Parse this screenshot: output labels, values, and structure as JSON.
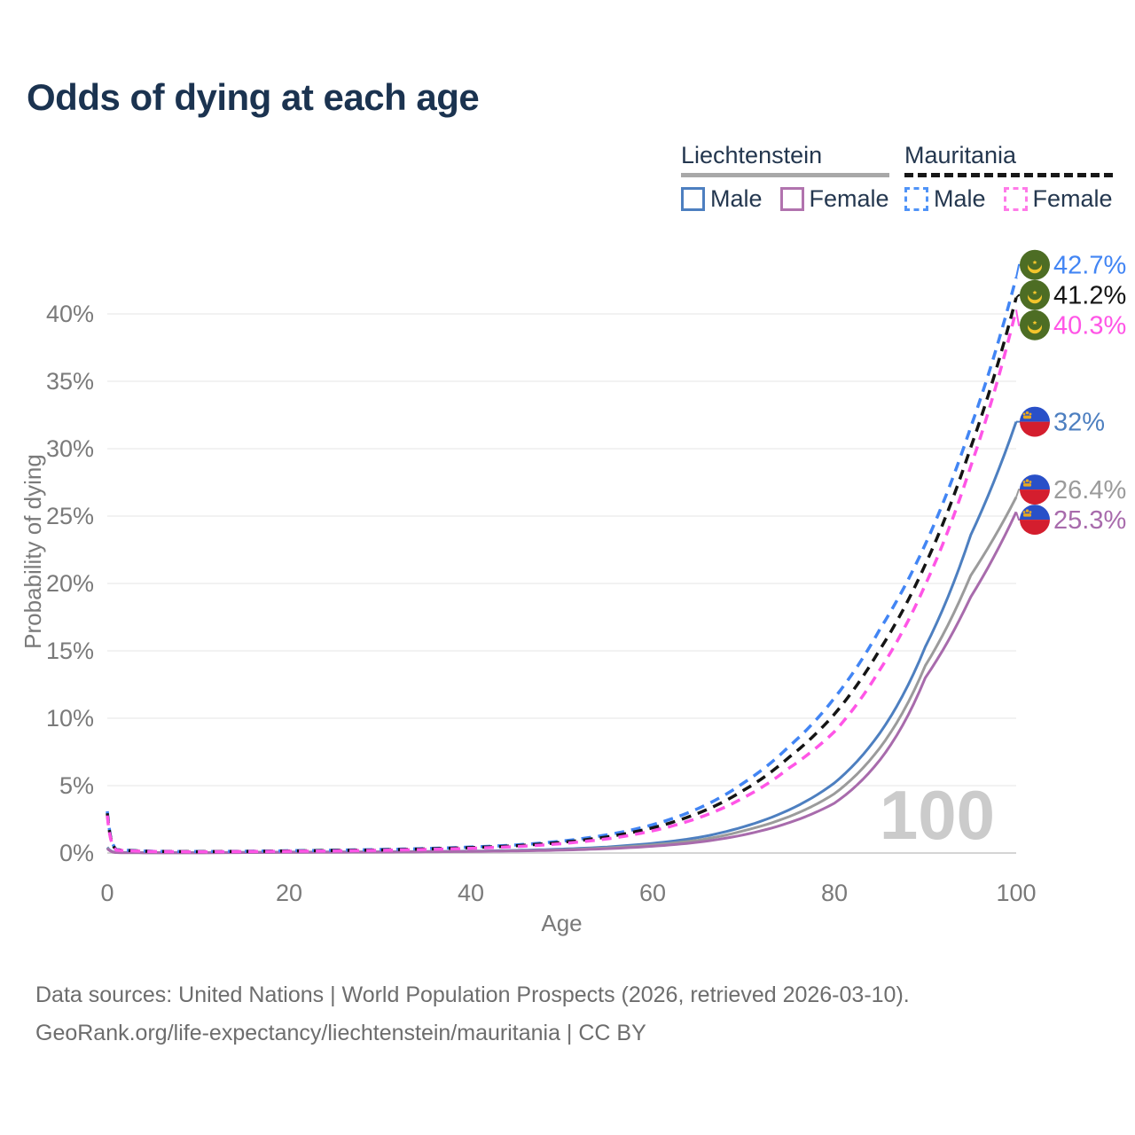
{
  "header": {
    "title": "Odds of dying at each age"
  },
  "legend": {
    "groups": [
      {
        "key": "liechtenstein",
        "title": "Liechtenstein",
        "line_style": "solid",
        "line_color": "#a8a8a8",
        "items": [
          {
            "key": "lie_male",
            "label": "Male",
            "swatch_color": "#4d7fc0",
            "swatch_style": "solid"
          },
          {
            "key": "lie_female",
            "label": "Female",
            "swatch_color": "#b173ae",
            "swatch_style": "solid"
          }
        ]
      },
      {
        "key": "mauritania",
        "title": "Mauritania",
        "line_style": "dashed",
        "line_color": "#171717",
        "items": [
          {
            "key": "mrt_male",
            "label": "Male",
            "swatch_color": "#4f93f7",
            "swatch_style": "dashed"
          },
          {
            "key": "mrt_female",
            "label": "Female",
            "swatch_color": "#ff7ae8",
            "swatch_style": "dashed"
          }
        ]
      }
    ]
  },
  "footer": {
    "line1": "Data sources: United Nations | World Population Prospects (2026, retrieved 2026-03-10).",
    "line2": "GeoRank.org/life-expectancy/liechtenstein/mauritania | CC BY"
  },
  "colors": {
    "title": "#1b3350",
    "axis_text": "#7a7a7a",
    "gridline": "#ededed",
    "zero_line": "#d4d4d4",
    "watermark": "#cbcbcb",
    "footer_text": "#6d6d6d",
    "mauritania_flag_green": "#4d6d24",
    "mauritania_flag_gold": "#f4c52c",
    "liechtenstein_flag_blue": "#2950c8",
    "liechtenstein_flag_red": "#d41e2e",
    "liechtenstein_flag_gold": "#e8a820"
  },
  "chart_data": {
    "type": "line",
    "title": "Odds of dying at each age",
    "xlabel": "Age",
    "ylabel": "Probability of dying",
    "xlim": [
      0,
      100
    ],
    "ylim": [
      0,
      44
    ],
    "x_ticks": [
      0,
      20,
      40,
      60,
      80,
      100
    ],
    "y_ticks": [
      0,
      5,
      10,
      15,
      20,
      25,
      30,
      35,
      40
    ],
    "y_tick_suffix": "%",
    "grid": "horizontal",
    "legend_position": "top-right",
    "watermark_age": "100",
    "series": [
      {
        "key": "lie_male",
        "name": "Liechtenstein Male",
        "country": "Liechtenstein",
        "sex": "Male",
        "color": "#4d7fc0",
        "dashed": false,
        "flag": "liechtenstein",
        "end_value": 32,
        "end_label": "32%",
        "points": [
          [
            0,
            0.42
          ],
          [
            1,
            0.04
          ],
          [
            5,
            0.03
          ],
          [
            10,
            0.03
          ],
          [
            15,
            0.05
          ],
          [
            20,
            0.07
          ],
          [
            25,
            0.08
          ],
          [
            30,
            0.09
          ],
          [
            35,
            0.11
          ],
          [
            40,
            0.14
          ],
          [
            45,
            0.2
          ],
          [
            50,
            0.29
          ],
          [
            55,
            0.45
          ],
          [
            60,
            0.72
          ],
          [
            65,
            1.15
          ],
          [
            70,
            1.95
          ],
          [
            75,
            3.2
          ],
          [
            80,
            5.2
          ],
          [
            85,
            8.9
          ],
          [
            90,
            15.3
          ],
          [
            95,
            23.6
          ],
          [
            100,
            32
          ]
        ]
      },
      {
        "key": "lie_combined",
        "name": "Liechtenstein (both sexes)",
        "country": "Liechtenstein",
        "sex": "Both",
        "color": "#9b9b9b",
        "dashed": false,
        "flag": "liechtenstein",
        "end_value": 26.4,
        "end_label": "26.4%",
        "points": [
          [
            0,
            0.38
          ],
          [
            1,
            0.03
          ],
          [
            5,
            0.02
          ],
          [
            10,
            0.02
          ],
          [
            15,
            0.04
          ],
          [
            20,
            0.06
          ],
          [
            25,
            0.07
          ],
          [
            30,
            0.08
          ],
          [
            35,
            0.1
          ],
          [
            40,
            0.12
          ],
          [
            45,
            0.17
          ],
          [
            50,
            0.24
          ],
          [
            55,
            0.38
          ],
          [
            60,
            0.6
          ],
          [
            65,
            0.95
          ],
          [
            70,
            1.65
          ],
          [
            75,
            2.7
          ],
          [
            80,
            4.4
          ],
          [
            85,
            7.8
          ],
          [
            90,
            13.9
          ],
          [
            95,
            20.6
          ],
          [
            100,
            26.4
          ]
        ]
      },
      {
        "key": "lie_female",
        "name": "Liechtenstein Female",
        "country": "Liechtenstein",
        "sex": "Female",
        "color": "#a86bac",
        "dashed": false,
        "flag": "liechtenstein",
        "end_value": 25.3,
        "end_label": "25.3%",
        "points": [
          [
            0,
            0.33
          ],
          [
            1,
            0.03
          ],
          [
            5,
            0.02
          ],
          [
            10,
            0.02
          ],
          [
            15,
            0.03
          ],
          [
            20,
            0.05
          ],
          [
            25,
            0.06
          ],
          [
            30,
            0.07
          ],
          [
            35,
            0.09
          ],
          [
            40,
            0.11
          ],
          [
            45,
            0.15
          ],
          [
            50,
            0.21
          ],
          [
            55,
            0.32
          ],
          [
            60,
            0.5
          ],
          [
            65,
            0.8
          ],
          [
            70,
            1.35
          ],
          [
            75,
            2.25
          ],
          [
            80,
            3.7
          ],
          [
            85,
            6.9
          ],
          [
            90,
            13.0
          ],
          [
            95,
            19.0
          ],
          [
            100,
            25.3
          ]
        ]
      },
      {
        "key": "mrt_male",
        "name": "Mauritania Male",
        "country": "Mauritania",
        "sex": "Male",
        "color": "#4285f4",
        "dashed": true,
        "flag": "mauritania",
        "end_value": 42.7,
        "end_label": "42.7%",
        "points": [
          [
            0,
            3.1
          ],
          [
            1,
            0.25
          ],
          [
            5,
            0.13
          ],
          [
            10,
            0.11
          ],
          [
            15,
            0.13
          ],
          [
            20,
            0.17
          ],
          [
            25,
            0.21
          ],
          [
            30,
            0.26
          ],
          [
            35,
            0.33
          ],
          [
            40,
            0.44
          ],
          [
            45,
            0.6
          ],
          [
            50,
            0.88
          ],
          [
            55,
            1.35
          ],
          [
            60,
            2.1
          ],
          [
            65,
            3.3
          ],
          [
            70,
            5.2
          ],
          [
            75,
            7.9
          ],
          [
            80,
            11.5
          ],
          [
            85,
            16.6
          ],
          [
            90,
            22.9
          ],
          [
            95,
            31.6
          ],
          [
            100,
            42.7
          ]
        ]
      },
      {
        "key": "mrt_combined",
        "name": "Mauritania (both sexes)",
        "country": "Mauritania",
        "sex": "Both",
        "color": "#141414",
        "dashed": true,
        "flag": "mauritania",
        "end_value": 41.2,
        "end_label": "41.2%",
        "points": [
          [
            0,
            2.95
          ],
          [
            1,
            0.23
          ],
          [
            5,
            0.12
          ],
          [
            10,
            0.1
          ],
          [
            15,
            0.12
          ],
          [
            20,
            0.15
          ],
          [
            25,
            0.19
          ],
          [
            30,
            0.23
          ],
          [
            35,
            0.3
          ],
          [
            40,
            0.4
          ],
          [
            45,
            0.54
          ],
          [
            50,
            0.79
          ],
          [
            55,
            1.2
          ],
          [
            60,
            1.87
          ],
          [
            65,
            2.95
          ],
          [
            70,
            4.65
          ],
          [
            75,
            7.1
          ],
          [
            80,
            10.3
          ],
          [
            85,
            15.1
          ],
          [
            90,
            21.4
          ],
          [
            95,
            30.1
          ],
          [
            100,
            41.2
          ]
        ]
      },
      {
        "key": "mrt_female",
        "name": "Mauritania Female",
        "country": "Mauritania",
        "sex": "Female",
        "color": "#ff55e6",
        "dashed": true,
        "flag": "mauritania",
        "end_value": 40.3,
        "end_label": "40.3%",
        "points": [
          [
            0,
            2.78
          ],
          [
            1,
            0.21
          ],
          [
            5,
            0.11
          ],
          [
            10,
            0.09
          ],
          [
            15,
            0.11
          ],
          [
            20,
            0.13
          ],
          [
            25,
            0.16
          ],
          [
            30,
            0.2
          ],
          [
            35,
            0.26
          ],
          [
            40,
            0.35
          ],
          [
            45,
            0.48
          ],
          [
            50,
            0.7
          ],
          [
            55,
            1.05
          ],
          [
            60,
            1.65
          ],
          [
            65,
            2.6
          ],
          [
            70,
            4.1
          ],
          [
            75,
            6.3
          ],
          [
            80,
            9.0
          ],
          [
            85,
            13.6
          ],
          [
            90,
            19.9
          ],
          [
            95,
            28.7
          ],
          [
            100,
            40.3
          ]
        ]
      }
    ]
  }
}
